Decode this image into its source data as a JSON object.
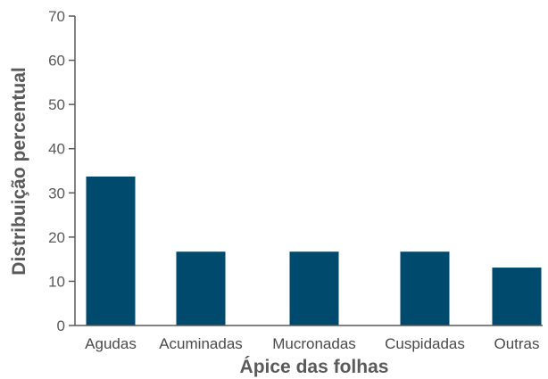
{
  "chart_data": {
    "type": "bar",
    "categories": [
      "Agudas",
      "Acuminadas",
      "Mucronadas",
      "Cuspidadas",
      "Outras"
    ],
    "values": [
      33.7,
      16.7,
      16.7,
      16.7,
      13.1
    ],
    "xlabel": "Ápice das folhas",
    "ylabel": "Distribuição percentual",
    "ylim": [
      0,
      70
    ],
    "yticks": [
      0,
      10,
      20,
      30,
      40,
      50,
      60,
      70
    ],
    "grid": false,
    "legend": "none",
    "bar_color": "#004a6e",
    "axis_color": "#5a5a5a"
  }
}
